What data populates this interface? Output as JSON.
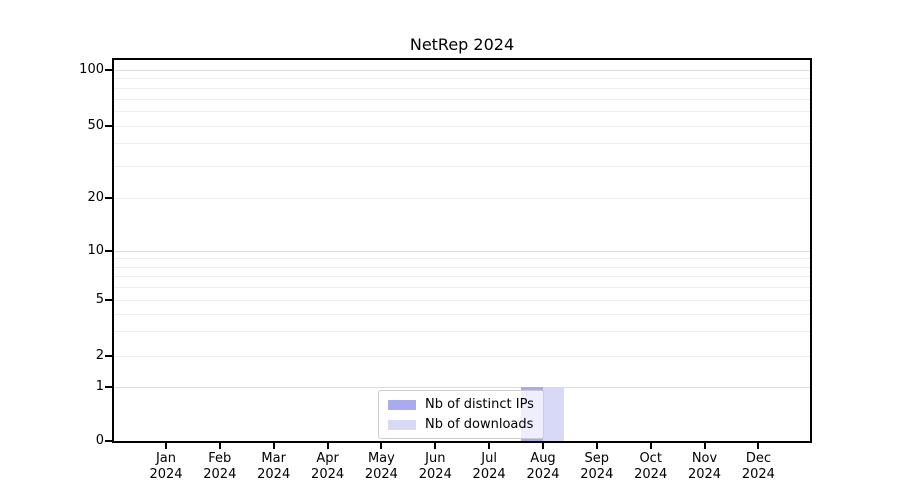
{
  "chart_data": {
    "type": "bar",
    "title": "NetRep 2024",
    "categories": [
      "Jan",
      "Feb",
      "Mar",
      "Apr",
      "May",
      "Jun",
      "Jul",
      "Aug",
      "Sep",
      "Oct",
      "Nov",
      "Dec"
    ],
    "year_label": "2024",
    "series": [
      {
        "name": "Nb of distinct IPs",
        "color": "#aaaaee",
        "values": [
          0,
          0,
          0,
          0,
          0,
          0,
          0,
          1,
          0,
          0,
          0,
          0
        ]
      },
      {
        "name": "Nb of downloads",
        "color": "#d8d8f7",
        "values": [
          0,
          0,
          0,
          0,
          0,
          0,
          0,
          1,
          0,
          0,
          0,
          0
        ]
      }
    ],
    "y_axis": {
      "scale": "symlog",
      "tick_values": [
        0,
        1,
        2,
        5,
        10,
        20,
        50,
        100
      ],
      "tick_labels": [
        "0",
        "1",
        "2",
        "5",
        "10",
        "20",
        "50",
        "100"
      ],
      "major_gridlines": [
        1,
        10,
        100
      ],
      "minor_gridlines": [
        2,
        3,
        4,
        5,
        6,
        7,
        8,
        9,
        20,
        30,
        40,
        50,
        60,
        70,
        80,
        90
      ],
      "ylim": [
        0,
        120
      ]
    },
    "legend": {
      "position": "lower-center",
      "entries": [
        "Nb of distinct IPs",
        "Nb of downloads"
      ]
    },
    "grid": true
  },
  "colors": {
    "grid_minor": "#ededed",
    "grid_major": "#dbdbdb",
    "axis": "#000000",
    "legend_border": "#cccccc"
  }
}
